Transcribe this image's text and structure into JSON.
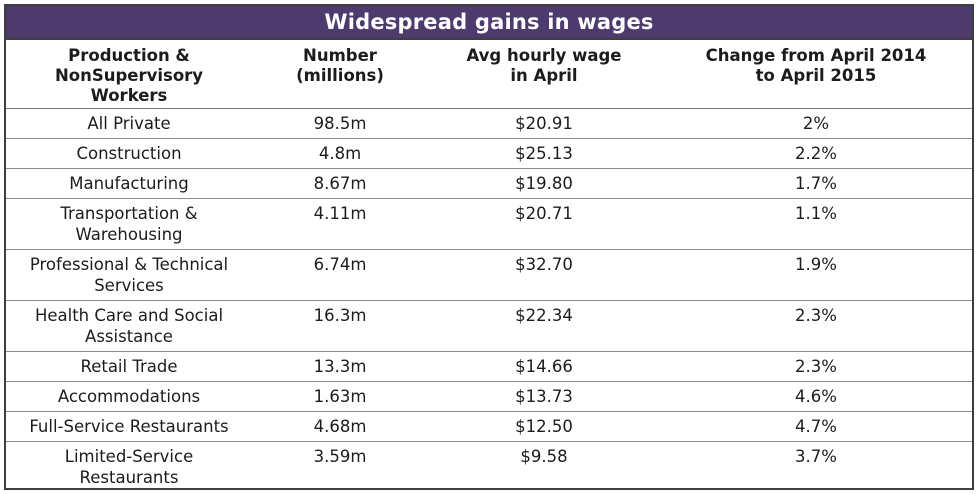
{
  "title": "Widespread gains in wages",
  "headers": [
    "Production &\nNonSupervisory\nWorkers",
    "Number\n(millions)",
    "Avg hourly wage\nin April",
    "Change from April 2014\nto April 2015"
  ],
  "rows": [
    {
      "sector": "All Private",
      "number": "98.5m",
      "wage": "$20.91",
      "change": "2%"
    },
    {
      "sector": "Construction",
      "number": "4.8m",
      "wage": "$25.13",
      "change": "2.2%"
    },
    {
      "sector": "Manufacturing",
      "number": "8.67m",
      "wage": "$19.80",
      "change": "1.7%"
    },
    {
      "sector": "Transportation &\nWarehousing",
      "number": "4.11m",
      "wage": "$20.71",
      "change": "1.1%"
    },
    {
      "sector": "Professional & Technical\nServices",
      "number": "6.74m",
      "wage": "$32.70",
      "change": "1.9%"
    },
    {
      "sector": "Health Care and Social\nAssistance",
      "number": "16.3m",
      "wage": "$22.34",
      "change": "2.3%"
    },
    {
      "sector": "Retail Trade",
      "number": "13.3m",
      "wage": "$14.66",
      "change": "2.3%"
    },
    {
      "sector": "Accommodations",
      "number": "1.63m",
      "wage": "$13.73",
      "change": "4.6%"
    },
    {
      "sector": "Full-Service Restaurants",
      "number": "4.68m",
      "wage": "$12.50",
      "change": "4.7%"
    },
    {
      "sector": "Limited-Service\nRestaurants",
      "number": "3.59m",
      "wage": "$9.58",
      "change": "3.7%"
    }
  ],
  "colors": {
    "title_background": "#4d3b6d",
    "title_text": "#ffffff",
    "border": "#3f3f3f"
  }
}
